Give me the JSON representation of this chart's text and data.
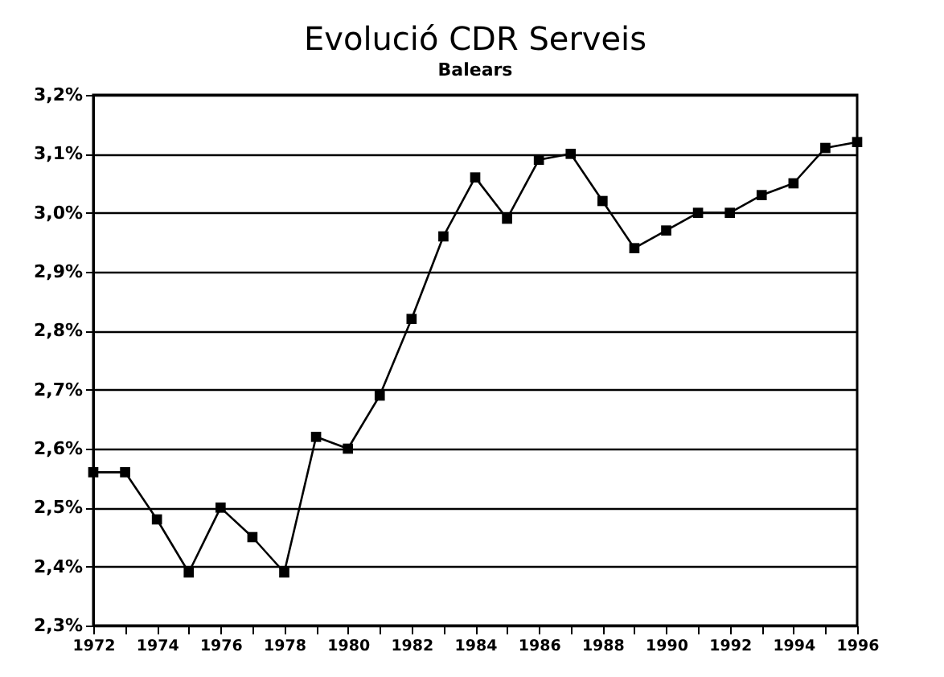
{
  "chart_data": {
    "type": "line",
    "title": "Evolució CDR Serveis",
    "subtitle": "Balears",
    "x": [
      1972,
      1973,
      1974,
      1975,
      1976,
      1977,
      1978,
      1979,
      1980,
      1981,
      1982,
      1983,
      1984,
      1985,
      1986,
      1987,
      1988,
      1989,
      1990,
      1991,
      1992,
      1993,
      1994,
      1995,
      1996
    ],
    "series": [
      {
        "color": "#000000",
        "values": [
          2.56,
          2.56,
          2.48,
          2.39,
          2.5,
          2.45,
          2.39,
          2.62,
          2.6,
          2.69,
          2.82,
          2.96,
          3.06,
          2.99,
          3.09,
          3.1,
          3.02,
          2.94,
          2.97,
          3.0,
          3.0,
          3.03,
          3.05,
          3.11,
          3.12
        ]
      }
    ],
    "xlim": [
      1972,
      1996
    ],
    "xticks": [
      1972,
      {
        "value": 1973,
        "label": null
      },
      1974,
      {
        "value": 1975,
        "label": null
      },
      1976,
      {
        "value": 1977,
        "label": null
      },
      1978,
      {
        "value": 1979,
        "label": null
      },
      1980,
      {
        "value": 1981,
        "label": null
      },
      1982,
      {
        "value": 1983,
        "label": null
      },
      1984,
      {
        "value": 1985,
        "label": null
      },
      1986,
      {
        "value": 1987,
        "label": null
      },
      1988,
      {
        "value": 1989,
        "label": null
      },
      1990,
      {
        "value": 1991,
        "label": null
      },
      1992,
      {
        "value": 1993,
        "label": null
      },
      1994,
      {
        "value": 1995,
        "label": null
      },
      1996
    ],
    "ylim": [
      2.3,
      3.2
    ],
    "yticks": [
      {
        "value": 2.3,
        "label": "2,3%"
      },
      {
        "value": 2.4,
        "label": "2,4%"
      },
      {
        "value": 2.5,
        "label": "2,5%"
      },
      {
        "value": 2.6,
        "label": "2,6%"
      },
      {
        "value": 2.7,
        "label": "2,7%"
      },
      {
        "value": 2.8,
        "label": "2,8%"
      },
      {
        "value": 2.9,
        "label": "2,9%"
      },
      {
        "value": 3.0,
        "label": "3,0%"
      },
      {
        "value": 3.1,
        "label": "3,1%"
      },
      {
        "value": 3.2,
        "label": "3,2%"
      }
    ],
    "grid": "y",
    "marker": "square",
    "line_style": "solid"
  }
}
